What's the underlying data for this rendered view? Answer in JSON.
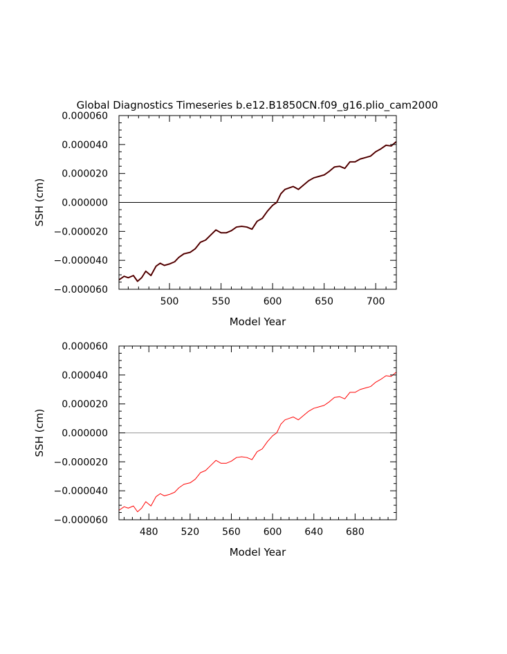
{
  "figure": {
    "title": "Global Diagnostics Timeseries b.e12.B1850CN.f09_g16.plio_cam2000"
  },
  "colors": {
    "background": "#ffffff",
    "axes": "#000000",
    "top_series": "#7a0000",
    "top_overlay": "#000000",
    "bottom_series": "#ff0000",
    "top_zero_line": "#000000",
    "bottom_zero_line": "#999999"
  },
  "chart_data": [
    {
      "type": "line",
      "xlabel": "Model Year",
      "ylabel": "SSH (cm)",
      "xlim": [
        451,
        720
      ],
      "ylim": [
        -6e-05,
        6e-05
      ],
      "xticks": [
        500,
        550,
        600,
        650,
        700
      ],
      "xtick_labels": [
        "500",
        "550",
        "600",
        "650",
        "700"
      ],
      "yticks": [
        -6e-05,
        -4e-05,
        -2e-05,
        0,
        2e-05,
        4e-05,
        6e-05
      ],
      "ytick_labels": [
        "−0.000060",
        "−0.000040",
        "−0.000020",
        "0.000000",
        "0.000020",
        "0.000040",
        "0.000060"
      ],
      "reference_line": 0,
      "grid": false,
      "series": [
        {
          "x": [
            451,
            456,
            460,
            465,
            469,
            473,
            477,
            482,
            487,
            491,
            495,
            500,
            505,
            509,
            514,
            520,
            525,
            530,
            535,
            540,
            545,
            550,
            555,
            560,
            565,
            570,
            575,
            580,
            585,
            590,
            595,
            600,
            604,
            608,
            612,
            616,
            620,
            625,
            630,
            635,
            640,
            645,
            650,
            655,
            660,
            665,
            670,
            675,
            680,
            685,
            690,
            695,
            700,
            705,
            710,
            715,
            720
          ],
          "y": [
            -5.35e-05,
            -5.1e-05,
            -5.2e-05,
            -5.05e-05,
            -5.45e-05,
            -5.2e-05,
            -4.75e-05,
            -5.05e-05,
            -4.4e-05,
            -4.2e-05,
            -4.35e-05,
            -4.25e-05,
            -4.1e-05,
            -3.8e-05,
            -3.55e-05,
            -3.45e-05,
            -3.2e-05,
            -2.75e-05,
            -2.6e-05,
            -2.25e-05,
            -1.9e-05,
            -2.1e-05,
            -2.1e-05,
            -1.95e-05,
            -1.7e-05,
            -1.65e-05,
            -1.7e-05,
            -1.85e-05,
            -1.3e-05,
            -1.1e-05,
            -6e-06,
            -2e-06,
            0.0,
            6e-06,
            9e-06,
            1e-05,
            1.1e-05,
            9e-06,
            1.2e-05,
            1.5e-05,
            1.7e-05,
            1.8e-05,
            1.9e-05,
            2.15e-05,
            2.45e-05,
            2.5e-05,
            2.35e-05,
            2.8e-05,
            2.8e-05,
            3e-05,
            3.1e-05,
            3.2e-05,
            3.5e-05,
            3.7e-05,
            3.95e-05,
            3.9e-05,
            4.2e-05
          ]
        }
      ]
    },
    {
      "type": "line",
      "xlabel": "Model Year",
      "ylabel": "SSH (cm)",
      "xlim": [
        451,
        720
      ],
      "ylim": [
        -6e-05,
        6e-05
      ],
      "xticks": [
        480,
        520,
        560,
        600,
        640,
        680
      ],
      "xtick_labels": [
        "480",
        "520",
        "560",
        "600",
        "640",
        "680"
      ],
      "yticks": [
        -6e-05,
        -4e-05,
        -2e-05,
        0,
        2e-05,
        4e-05,
        6e-05
      ],
      "ytick_labels": [
        "−0.000060",
        "−0.000040",
        "−0.000020",
        "0.000000",
        "0.000020",
        "0.000040",
        "0.000060"
      ],
      "reference_line": 0,
      "grid": false,
      "series": [
        {
          "x": [
            451,
            456,
            460,
            465,
            469,
            473,
            477,
            482,
            487,
            491,
            495,
            500,
            505,
            509,
            514,
            520,
            525,
            530,
            535,
            540,
            545,
            550,
            555,
            560,
            565,
            570,
            575,
            580,
            585,
            590,
            595,
            600,
            604,
            608,
            612,
            616,
            620,
            625,
            630,
            635,
            640,
            645,
            650,
            655,
            660,
            665,
            670,
            675,
            680,
            685,
            690,
            695,
            700,
            705,
            710,
            715,
            720
          ],
          "y": [
            -5.35e-05,
            -5.1e-05,
            -5.2e-05,
            -5.05e-05,
            -5.45e-05,
            -5.2e-05,
            -4.75e-05,
            -5.05e-05,
            -4.4e-05,
            -4.2e-05,
            -4.35e-05,
            -4.25e-05,
            -4.1e-05,
            -3.8e-05,
            -3.55e-05,
            -3.45e-05,
            -3.2e-05,
            -2.75e-05,
            -2.6e-05,
            -2.25e-05,
            -1.9e-05,
            -2.1e-05,
            -2.1e-05,
            -1.95e-05,
            -1.7e-05,
            -1.65e-05,
            -1.7e-05,
            -1.85e-05,
            -1.3e-05,
            -1.1e-05,
            -6e-06,
            -2e-06,
            0.0,
            6e-06,
            9e-06,
            1e-05,
            1.1e-05,
            9e-06,
            1.2e-05,
            1.5e-05,
            1.7e-05,
            1.8e-05,
            1.9e-05,
            2.15e-05,
            2.45e-05,
            2.5e-05,
            2.35e-05,
            2.8e-05,
            2.8e-05,
            3e-05,
            3.1e-05,
            3.2e-05,
            3.5e-05,
            3.7e-05,
            3.95e-05,
            3.9e-05,
            4.2e-05
          ]
        }
      ]
    }
  ]
}
